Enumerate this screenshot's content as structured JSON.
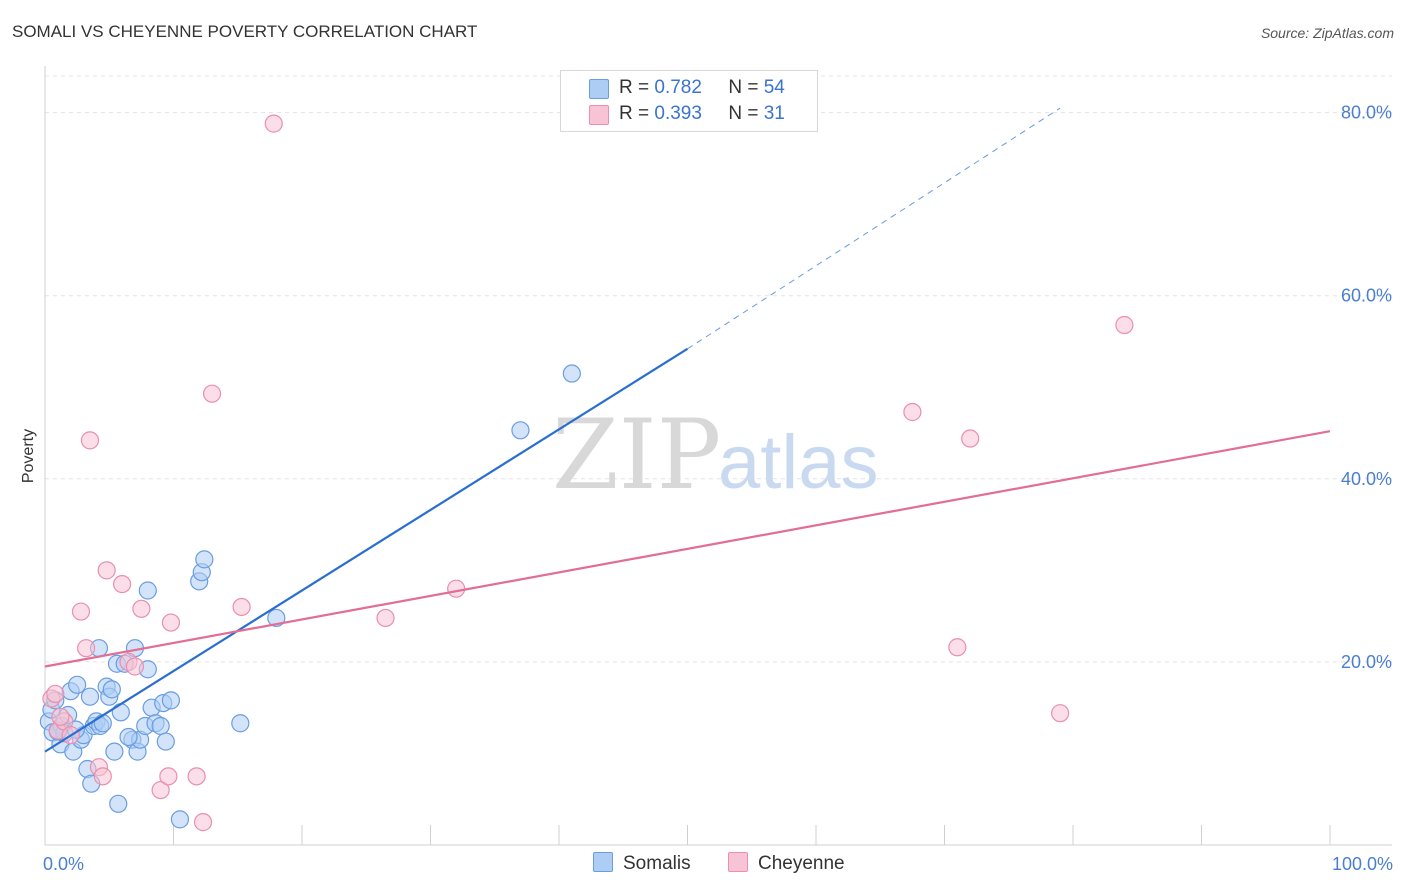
{
  "header": {
    "title": "SOMALI VS CHEYENNE POVERTY CORRELATION CHART",
    "source": "Source: ZipAtlas.com"
  },
  "watermark": {
    "zip": "ZIP",
    "atlas": "atlas"
  },
  "legend": {
    "rows": [
      {
        "r_label": "R =",
        "r_value": "0.782",
        "n_label": "N =",
        "n_value": "54",
        "color": "#aecdf5",
        "border": "#6a9de0"
      },
      {
        "r_label": "R =",
        "r_value": "0.393",
        "n_label": "N =",
        "n_value": "31",
        "color": "#f8c3d4",
        "border": "#e890ad"
      }
    ]
  },
  "bottom_legend": [
    {
      "label": "Somalis",
      "color": "#aecdf5",
      "border": "#6a9de0"
    },
    {
      "label": "Cheyenne",
      "color": "#f8c3d4",
      "border": "#e890ad"
    }
  ],
  "chart_data": {
    "type": "scatter",
    "title": "SOMALI VS CHEYENNE POVERTY CORRELATION CHART",
    "xlabel": "",
    "ylabel": "Poverty",
    "xlim": [
      0,
      100
    ],
    "ylim": [
      0,
      84
    ],
    "x_tick_labels": [
      "0.0%",
      "100.0%"
    ],
    "y_ticks": [
      20,
      40,
      60,
      80
    ],
    "y_tick_labels": [
      "20.0%",
      "40.0%",
      "60.0%",
      "80.0%"
    ],
    "grid": true,
    "series": [
      {
        "name": "Somalis",
        "color": "#aecdf5",
        "stroke": "#6a9de0",
        "line_color": "#2a6fd0",
        "trend": {
          "x0": 0,
          "y0": 10.2,
          "x1": 50,
          "y1": 54.2,
          "dash_to_x": 79,
          "dash_to_y": 80.5
        },
        "points": [
          [
            0.3,
            13.5
          ],
          [
            0.5,
            14.8
          ],
          [
            0.6,
            12.3
          ],
          [
            0.8,
            15.8
          ],
          [
            1.0,
            12.5
          ],
          [
            1.2,
            11.0
          ],
          [
            1.3,
            13.0
          ],
          [
            1.5,
            12.2
          ],
          [
            1.8,
            14.2
          ],
          [
            2.0,
            16.8
          ],
          [
            2.2,
            10.2
          ],
          [
            2.5,
            17.5
          ],
          [
            2.8,
            11.5
          ],
          [
            3.0,
            12.0
          ],
          [
            3.3,
            8.3
          ],
          [
            3.5,
            16.2
          ],
          [
            3.6,
            6.7
          ],
          [
            3.8,
            13.0
          ],
          [
            4.0,
            13.5
          ],
          [
            4.2,
            21.5
          ],
          [
            4.3,
            13.0
          ],
          [
            4.5,
            13.3
          ],
          [
            4.8,
            17.3
          ],
          [
            5.0,
            16.2
          ],
          [
            5.2,
            17.0
          ],
          [
            5.4,
            10.2
          ],
          [
            5.6,
            19.8
          ],
          [
            5.7,
            4.5
          ],
          [
            5.9,
            14.5
          ],
          [
            6.2,
            19.8
          ],
          [
            6.8,
            11.5
          ],
          [
            7.0,
            21.5
          ],
          [
            7.2,
            10.2
          ],
          [
            7.4,
            11.5
          ],
          [
            7.8,
            13.0
          ],
          [
            8.0,
            27.8
          ],
          [
            8.0,
            19.2
          ],
          [
            8.3,
            15.0
          ],
          [
            8.6,
            13.3
          ],
          [
            9.0,
            13.0
          ],
          [
            9.2,
            15.5
          ],
          [
            9.4,
            11.3
          ],
          [
            9.8,
            15.8
          ],
          [
            10.5,
            2.8
          ],
          [
            12.0,
            28.8
          ],
          [
            12.2,
            29.8
          ],
          [
            12.4,
            31.2
          ],
          [
            15.2,
            13.3
          ],
          [
            18.0,
            24.8
          ],
          [
            37.0,
            45.3
          ],
          [
            41.0,
            51.5
          ],
          [
            1.0,
            12.4
          ],
          [
            2.4,
            12.6
          ],
          [
            6.5,
            11.8
          ]
        ]
      },
      {
        "name": "Cheyenne",
        "color": "#f8c3d4",
        "stroke": "#e890ad",
        "line_color": "#e26d95",
        "trend": {
          "x0": 0,
          "y0": 19.5,
          "x1": 100,
          "y1": 45.2
        },
        "points": [
          [
            0.5,
            16.0
          ],
          [
            0.8,
            16.5
          ],
          [
            1.0,
            12.5
          ],
          [
            1.5,
            13.5
          ],
          [
            2.0,
            12.0
          ],
          [
            2.8,
            25.5
          ],
          [
            3.2,
            21.5
          ],
          [
            3.5,
            44.2
          ],
          [
            4.2,
            8.5
          ],
          [
            4.5,
            7.5
          ],
          [
            4.8,
            30.0
          ],
          [
            6.0,
            28.5
          ],
          [
            6.5,
            20.0
          ],
          [
            7.0,
            19.5
          ],
          [
            7.5,
            25.8
          ],
          [
            9.0,
            6.0
          ],
          [
            9.6,
            7.5
          ],
          [
            9.8,
            24.3
          ],
          [
            11.8,
            7.5
          ],
          [
            12.3,
            2.5
          ],
          [
            13.0,
            49.3
          ],
          [
            15.3,
            26.0
          ],
          [
            17.8,
            78.8
          ],
          [
            26.5,
            24.8
          ],
          [
            32.0,
            28.0
          ],
          [
            67.5,
            47.3
          ],
          [
            71.0,
            21.6
          ],
          [
            72.0,
            44.4
          ],
          [
            79.0,
            14.4
          ],
          [
            84.0,
            56.8
          ],
          [
            1.2,
            14.0
          ]
        ]
      }
    ]
  }
}
